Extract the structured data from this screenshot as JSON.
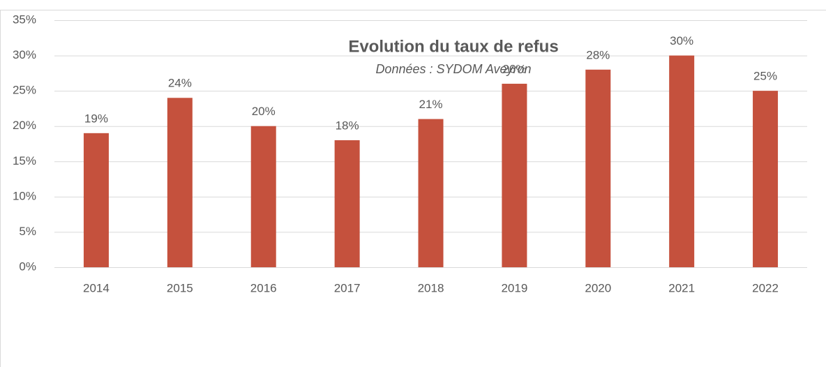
{
  "chart_data": {
    "type": "bar",
    "title": "Evolution du taux de refus",
    "subtitle": "Données : SYDOM Aveyron",
    "categories": [
      "2014",
      "2015",
      "2016",
      "2017",
      "2018",
      "2019",
      "2020",
      "2021",
      "2022"
    ],
    "values": [
      19,
      24,
      20,
      18,
      21,
      26,
      28,
      30,
      25
    ],
    "value_labels": [
      "19%",
      "24%",
      "20%",
      "18%",
      "21%",
      "26%",
      "28%",
      "30%",
      "25%"
    ],
    "color": "#c5513d",
    "ylim": [
      0,
      35
    ],
    "yticks": [
      {
        "value": 0,
        "label": "0%"
      },
      {
        "value": 5,
        "label": "5%"
      },
      {
        "value": 10,
        "label": "10%"
      },
      {
        "value": 15,
        "label": "15%"
      },
      {
        "value": 20,
        "label": "20%"
      },
      {
        "value": 25,
        "label": "25%"
      },
      {
        "value": 30,
        "label": "30%"
      },
      {
        "value": 35,
        "label": "35%"
      }
    ],
    "grid": true
  }
}
